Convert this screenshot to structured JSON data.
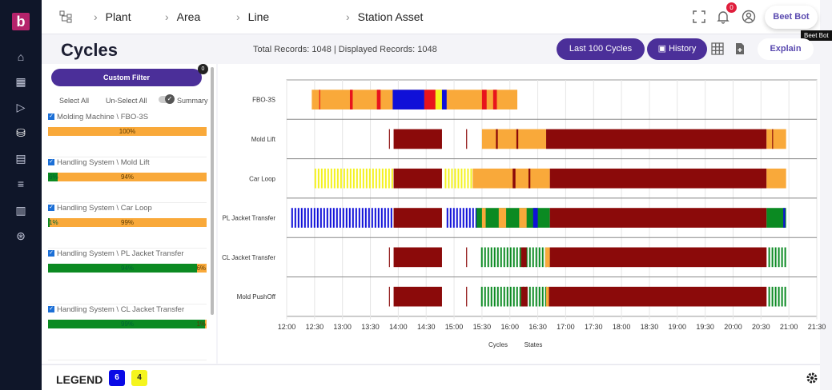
{
  "app": {
    "logo": "b"
  },
  "sidebar": {
    "icons": [
      "home-icon",
      "dashboard-icon",
      "video-icon",
      "database-icon",
      "report-icon",
      "edit-list-icon",
      "columns-icon",
      "settings-wheel-icon"
    ]
  },
  "breadcrumb": [
    "Plant",
    "Area",
    "Line",
    "Station Asset"
  ],
  "header": {
    "notifications": "0",
    "bot_label": "Beet Bot",
    "tooltip": "Beet Bot"
  },
  "page": {
    "title": "Cycles",
    "records": "Total Records: 1048 | Displayed Records: 1048",
    "last_cycles": "Last 100 Cycles",
    "history": "History",
    "explain": "Explain"
  },
  "filter": {
    "custom_filter": "Custom Filter",
    "count": "0",
    "select_all": "Select All",
    "unselect_all": "Un-Select All",
    "summary": "Summary",
    "items": [
      {
        "name": "Molding Machine \\ FBO-3S",
        "green_pct": 0,
        "green_label": "",
        "other_label": "100%"
      },
      {
        "name": "Handling System \\ Mold Lift",
        "green_pct": 6,
        "green_label": "6%",
        "other_label": "94%"
      },
      {
        "name": "Handling System \\ Car Loop",
        "green_pct": 1,
        "green_label": "1%",
        "other_label": "99%"
      },
      {
        "name": "Handling System \\ PL Jacket Transfer",
        "green_pct": 94,
        "green_label": "94%",
        "other_label": "6%"
      },
      {
        "name": "Handling System \\ CL Jacket Transfer",
        "green_pct": 99,
        "green_label": "99%",
        "other_label": "1%"
      }
    ]
  },
  "legend": {
    "title": "LEGEND",
    "badges": [
      {
        "value": "6",
        "color": "#0a0ae6"
      },
      {
        "value": "4",
        "color": "#f5f51e"
      }
    ]
  },
  "colors": {
    "orange": "#f9a93a",
    "darkred": "#8b0a0a",
    "red": "#e8141c",
    "blue": "#1010d8",
    "yellow": "#f4f21e",
    "green": "#0b8a22",
    "purple": "#4b2f99"
  },
  "chart_data": {
    "type": "timeline",
    "x_ticks": [
      "12:00",
      "12:30",
      "13:00",
      "13:30",
      "14:00",
      "14:30",
      "15:00",
      "15:30",
      "16:00",
      "16:30",
      "17:00",
      "17:30",
      "18:00",
      "18:30",
      "19:00",
      "19:30",
      "20:00",
      "20:30",
      "21:00",
      "21:30"
    ],
    "xlim": [
      "12:00",
      "21:30"
    ],
    "legend_labels": [
      "Cycles",
      "States"
    ],
    "rows": [
      {
        "label": "FBO-3S",
        "segments": [
          [
            "12:27",
            "16:08",
            "orange"
          ],
          [
            "12:35",
            "12:36",
            "red"
          ],
          [
            "13:08",
            "13:11",
            "red"
          ],
          [
            "13:37",
            "13:41",
            "red"
          ],
          [
            "13:54",
            "14:28",
            "blue"
          ],
          [
            "14:28",
            "14:40",
            "red"
          ],
          [
            "14:40",
            "14:47",
            "yellow"
          ],
          [
            "14:47",
            "14:52",
            "blue"
          ],
          [
            "15:30",
            "15:35",
            "red"
          ],
          [
            "15:42",
            "15:46",
            "red"
          ]
        ]
      },
      {
        "label": "Mold Lift",
        "segments": [
          [
            "13:50",
            "13:51",
            "darkred"
          ],
          [
            "13:55",
            "14:47",
            "darkred"
          ],
          [
            "15:13",
            "15:14",
            "darkred"
          ],
          [
            "15:30",
            "16:39",
            "orange"
          ],
          [
            "15:45",
            "15:47",
            "darkred"
          ],
          [
            "16:07",
            "16:09",
            "darkred"
          ],
          [
            "16:39",
            "20:36",
            "darkred"
          ],
          [
            "20:36",
            "20:57",
            "orange"
          ],
          [
            "20:42",
            "20:43",
            "darkred"
          ]
        ]
      },
      {
        "label": "Car Loop",
        "segments": [
          [
            "12:30",
            "13:53",
            "yellow",
            "stripes"
          ],
          [
            "13:55",
            "14:47",
            "darkred"
          ],
          [
            "14:50",
            "15:20",
            "yellow",
            "stripes"
          ],
          [
            "15:20",
            "16:43",
            "orange"
          ],
          [
            "16:03",
            "16:06",
            "darkred"
          ],
          [
            "16:20",
            "16:22",
            "darkred"
          ],
          [
            "16:43",
            "20:36",
            "darkred"
          ],
          [
            "20:36",
            "20:57",
            "orange"
          ]
        ]
      },
      {
        "label": "PL Jacket Transfer",
        "segments": [
          [
            "12:05",
            "13:53",
            "blue",
            "stripes"
          ],
          [
            "13:55",
            "14:47",
            "darkred"
          ],
          [
            "14:52",
            "15:24",
            "blue",
            "stripes"
          ],
          [
            "15:24",
            "16:43",
            "green"
          ],
          [
            "15:30",
            "15:34",
            "orange"
          ],
          [
            "15:48",
            "15:56",
            "orange"
          ],
          [
            "16:10",
            "16:18",
            "orange"
          ],
          [
            "16:25",
            "16:30",
            "blue"
          ],
          [
            "16:43",
            "20:36",
            "darkred"
          ],
          [
            "20:36",
            "20:57",
            "green"
          ],
          [
            "20:54",
            "20:56",
            "blue"
          ]
        ]
      },
      {
        "label": "CL Jacket Transfer",
        "segments": [
          [
            "13:50",
            "13:51",
            "darkred"
          ],
          [
            "13:55",
            "14:47",
            "darkred"
          ],
          [
            "15:13",
            "15:14",
            "darkred"
          ],
          [
            "15:29",
            "16:43",
            "green",
            "stripes"
          ],
          [
            "16:12",
            "16:18",
            "darkred"
          ],
          [
            "16:38",
            "16:43",
            "orange"
          ],
          [
            "16:43",
            "20:36",
            "darkred"
          ],
          [
            "20:38",
            "20:57",
            "green",
            "stripes"
          ]
        ]
      },
      {
        "label": "Mold PushOff",
        "segments": [
          [
            "13:50",
            "13:51",
            "darkred"
          ],
          [
            "13:55",
            "14:47",
            "darkred"
          ],
          [
            "15:13",
            "15:14",
            "darkred"
          ],
          [
            "15:29",
            "16:39",
            "green",
            "stripes"
          ],
          [
            "16:12",
            "16:19",
            "darkred"
          ],
          [
            "16:39",
            "16:42",
            "orange"
          ],
          [
            "16:42",
            "20:36",
            "darkred"
          ],
          [
            "20:38",
            "20:57",
            "green",
            "stripes"
          ]
        ]
      }
    ]
  }
}
